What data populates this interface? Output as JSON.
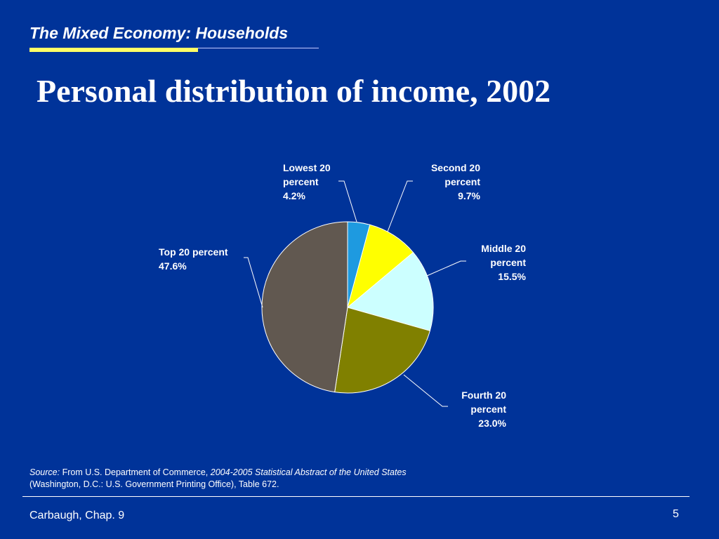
{
  "header": {
    "section_title": "The Mixed Economy: Households",
    "slide_title": "Personal distribution of income, 2002"
  },
  "chart_data": {
    "type": "pie",
    "slices": [
      {
        "label": "Lowest 20 percent",
        "value": 4.2,
        "value_label": "4.2%",
        "color": "#1e9ae0"
      },
      {
        "label": "Second 20 percent",
        "value": 9.7,
        "value_label": "9.7%",
        "color": "#ffff00"
      },
      {
        "label": "Middle 20 percent",
        "value": 15.5,
        "value_label": "15.5%",
        "color": "#ccffff"
      },
      {
        "label": "Fourth 20 percent",
        "value": 23.0,
        "value_label": "23.0%",
        "color": "#808000"
      },
      {
        "label": "Top 20 percent",
        "value": 47.6,
        "value_label": "47.6%",
        "color": "#615850"
      }
    ],
    "start_angle": "12 o'clock",
    "direction": "clockwise"
  },
  "source": {
    "prefix": "Source:",
    "text_before": "From U.S. Department of Commerce,",
    "publication": "2004-2005 Statistical Abstract of the United States",
    "text_after": "(Washington, D.C.: U.S. Government Printing Office), Table 672."
  },
  "footer": {
    "left": "Carbaugh, Chap. 9",
    "page_number": "5"
  },
  "colors": {
    "background": "#003399",
    "accent_rule": "#ffff66",
    "text": "#ffffff"
  }
}
